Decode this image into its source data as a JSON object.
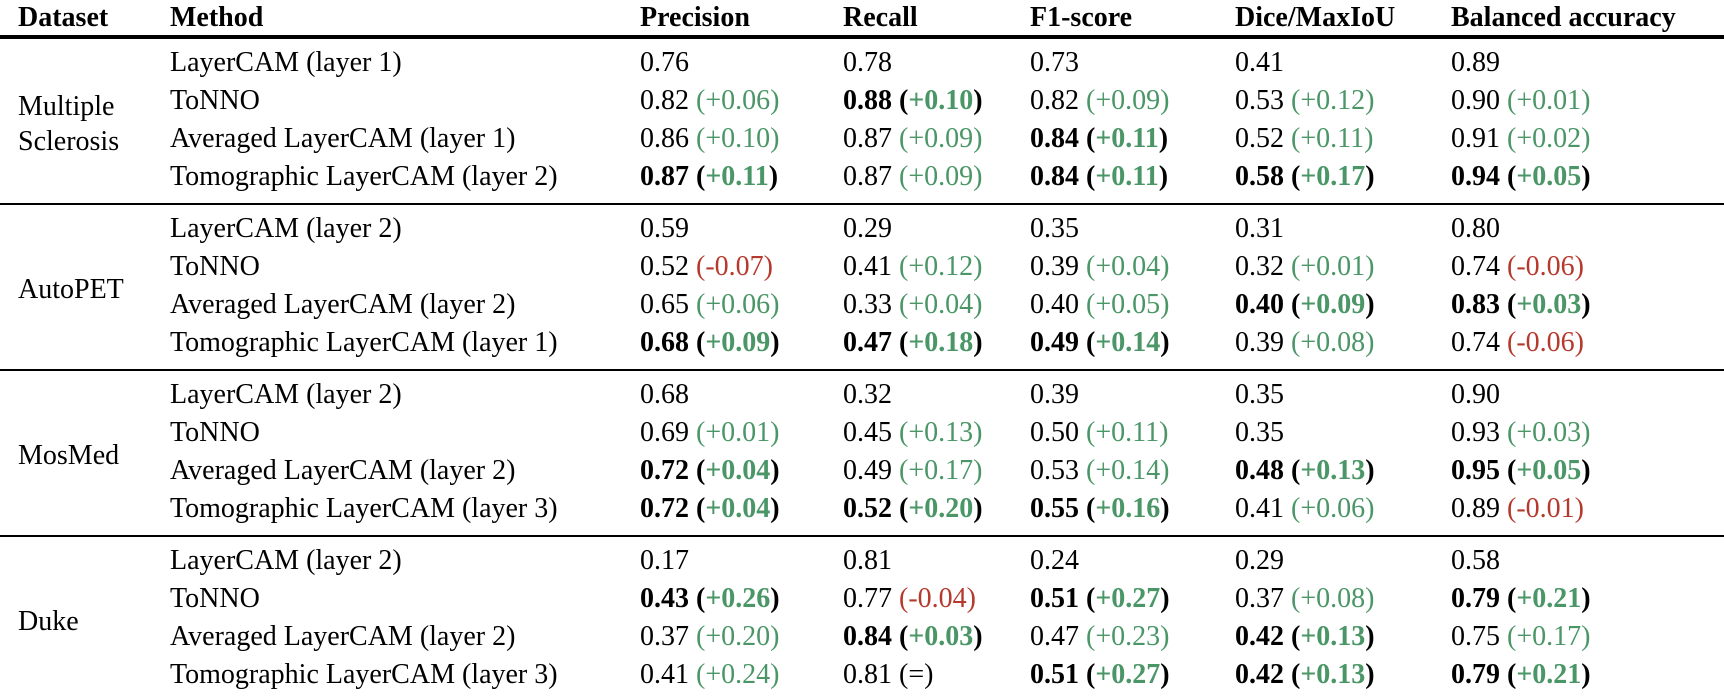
{
  "colors": {
    "positive_delta": "#4a9666",
    "negative_delta": "#b5392d",
    "text": "#000000",
    "background": "#ffffff"
  },
  "table": {
    "headers": [
      "Dataset",
      "Method",
      "Precision",
      "Recall",
      "F1-score",
      "Dice/MaxIoU",
      "Balanced accuracy"
    ],
    "groups": [
      {
        "dataset": "Multiple Sclerosis",
        "rows": [
          {
            "method": "LayerCAM (layer 1)",
            "cells": [
              {
                "value": "0.76",
                "bold": false,
                "delta": null,
                "trend": null
              },
              {
                "value": "0.78",
                "bold": false,
                "delta": null,
                "trend": null
              },
              {
                "value": "0.73",
                "bold": false,
                "delta": null,
                "trend": null
              },
              {
                "value": "0.41",
                "bold": false,
                "delta": null,
                "trend": null
              },
              {
                "value": "0.89",
                "bold": false,
                "delta": null,
                "trend": null
              }
            ]
          },
          {
            "method": "ToNNO",
            "cells": [
              {
                "value": "0.82",
                "bold": false,
                "delta": "+0.06",
                "trend": "pos"
              },
              {
                "value": "0.88",
                "bold": true,
                "delta": "+0.10",
                "trend": "pos"
              },
              {
                "value": "0.82",
                "bold": false,
                "delta": "+0.09",
                "trend": "pos"
              },
              {
                "value": "0.53",
                "bold": false,
                "delta": "+0.12",
                "trend": "pos"
              },
              {
                "value": "0.90",
                "bold": false,
                "delta": "+0.01",
                "trend": "pos"
              }
            ]
          },
          {
            "method": "Averaged LayerCAM (layer 1)",
            "cells": [
              {
                "value": "0.86",
                "bold": false,
                "delta": "+0.10",
                "trend": "pos"
              },
              {
                "value": "0.87",
                "bold": false,
                "delta": "+0.09",
                "trend": "pos"
              },
              {
                "value": "0.84",
                "bold": true,
                "delta": "+0.11",
                "trend": "pos"
              },
              {
                "value": "0.52",
                "bold": false,
                "delta": "+0.11",
                "trend": "pos"
              },
              {
                "value": "0.91",
                "bold": false,
                "delta": "+0.02",
                "trend": "pos"
              }
            ]
          },
          {
            "method": "Tomographic LayerCAM (layer 2)",
            "cells": [
              {
                "value": "0.87",
                "bold": true,
                "delta": "+0.11",
                "trend": "pos"
              },
              {
                "value": "0.87",
                "bold": false,
                "delta": "+0.09",
                "trend": "pos"
              },
              {
                "value": "0.84",
                "bold": true,
                "delta": "+0.11",
                "trend": "pos"
              },
              {
                "value": "0.58",
                "bold": true,
                "delta": "+0.17",
                "trend": "pos"
              },
              {
                "value": "0.94",
                "bold": true,
                "delta": "+0.05",
                "trend": "pos"
              }
            ]
          }
        ]
      },
      {
        "dataset": "AutoPET",
        "rows": [
          {
            "method": "LayerCAM (layer 2)",
            "cells": [
              {
                "value": "0.59",
                "bold": false,
                "delta": null,
                "trend": null
              },
              {
                "value": "0.29",
                "bold": false,
                "delta": null,
                "trend": null
              },
              {
                "value": "0.35",
                "bold": false,
                "delta": null,
                "trend": null
              },
              {
                "value": "0.31",
                "bold": false,
                "delta": null,
                "trend": null
              },
              {
                "value": "0.80",
                "bold": false,
                "delta": null,
                "trend": null
              }
            ]
          },
          {
            "method": "ToNNO",
            "cells": [
              {
                "value": "0.52",
                "bold": false,
                "delta": "-0.07",
                "trend": "neg"
              },
              {
                "value": "0.41",
                "bold": false,
                "delta": "+0.12",
                "trend": "pos"
              },
              {
                "value": "0.39",
                "bold": false,
                "delta": "+0.04",
                "trend": "pos"
              },
              {
                "value": "0.32",
                "bold": false,
                "delta": "+0.01",
                "trend": "pos"
              },
              {
                "value": "0.74",
                "bold": false,
                "delta": "-0.06",
                "trend": "neg"
              }
            ]
          },
          {
            "method": "Averaged LayerCAM (layer 2)",
            "cells": [
              {
                "value": "0.65",
                "bold": false,
                "delta": "+0.06",
                "trend": "pos"
              },
              {
                "value": "0.33",
                "bold": false,
                "delta": "+0.04",
                "trend": "pos"
              },
              {
                "value": "0.40",
                "bold": false,
                "delta": "+0.05",
                "trend": "pos"
              },
              {
                "value": "0.40",
                "bold": true,
                "delta": "+0.09",
                "trend": "pos"
              },
              {
                "value": "0.83",
                "bold": true,
                "delta": "+0.03",
                "trend": "pos"
              }
            ]
          },
          {
            "method": "Tomographic LayerCAM (layer 1)",
            "cells": [
              {
                "value": "0.68",
                "bold": true,
                "delta": "+0.09",
                "trend": "pos"
              },
              {
                "value": "0.47",
                "bold": true,
                "delta": "+0.18",
                "trend": "pos"
              },
              {
                "value": "0.49",
                "bold": true,
                "delta": "+0.14",
                "trend": "pos"
              },
              {
                "value": "0.39",
                "bold": false,
                "delta": "+0.08",
                "trend": "pos"
              },
              {
                "value": "0.74",
                "bold": false,
                "delta": "-0.06",
                "trend": "neg"
              }
            ]
          }
        ]
      },
      {
        "dataset": "MosMed",
        "rows": [
          {
            "method": "LayerCAM (layer 2)",
            "cells": [
              {
                "value": "0.68",
                "bold": false,
                "delta": null,
                "trend": null
              },
              {
                "value": "0.32",
                "bold": false,
                "delta": null,
                "trend": null
              },
              {
                "value": "0.39",
                "bold": false,
                "delta": null,
                "trend": null
              },
              {
                "value": "0.35",
                "bold": false,
                "delta": null,
                "trend": null
              },
              {
                "value": "0.90",
                "bold": false,
                "delta": null,
                "trend": null
              }
            ]
          },
          {
            "method": "ToNNO",
            "cells": [
              {
                "value": "0.69",
                "bold": false,
                "delta": "+0.01",
                "trend": "pos"
              },
              {
                "value": "0.45",
                "bold": false,
                "delta": "+0.13",
                "trend": "pos"
              },
              {
                "value": "0.50",
                "bold": false,
                "delta": "+0.11",
                "trend": "pos"
              },
              {
                "value": "0.35",
                "bold": false,
                "delta": null,
                "trend": null
              },
              {
                "value": "0.93",
                "bold": false,
                "delta": "+0.03",
                "trend": "pos"
              }
            ]
          },
          {
            "method": "Averaged LayerCAM (layer 2)",
            "cells": [
              {
                "value": "0.72",
                "bold": true,
                "delta": "+0.04",
                "trend": "pos"
              },
              {
                "value": "0.49",
                "bold": false,
                "delta": "+0.17",
                "trend": "pos"
              },
              {
                "value": "0.53",
                "bold": false,
                "delta": "+0.14",
                "trend": "pos"
              },
              {
                "value": "0.48",
                "bold": true,
                "delta": "+0.13",
                "trend": "pos"
              },
              {
                "value": "0.95",
                "bold": true,
                "delta": "+0.05",
                "trend": "pos"
              }
            ]
          },
          {
            "method": "Tomographic LayerCAM (layer 3)",
            "cells": [
              {
                "value": "0.72",
                "bold": true,
                "delta": "+0.04",
                "trend": "pos"
              },
              {
                "value": "0.52",
                "bold": true,
                "delta": "+0.20",
                "trend": "pos"
              },
              {
                "value": "0.55",
                "bold": true,
                "delta": "+0.16",
                "trend": "pos"
              },
              {
                "value": "0.41",
                "bold": false,
                "delta": "+0.06",
                "trend": "pos"
              },
              {
                "value": "0.89",
                "bold": false,
                "delta": "-0.01",
                "trend": "neg"
              }
            ]
          }
        ]
      },
      {
        "dataset": "Duke",
        "rows": [
          {
            "method": "LayerCAM (layer 2)",
            "cells": [
              {
                "value": "0.17",
                "bold": false,
                "delta": null,
                "trend": null
              },
              {
                "value": "0.81",
                "bold": false,
                "delta": null,
                "trend": null
              },
              {
                "value": "0.24",
                "bold": false,
                "delta": null,
                "trend": null
              },
              {
                "value": "0.29",
                "bold": false,
                "delta": null,
                "trend": null
              },
              {
                "value": "0.58",
                "bold": false,
                "delta": null,
                "trend": null
              }
            ]
          },
          {
            "method": "ToNNO",
            "cells": [
              {
                "value": "0.43",
                "bold": true,
                "delta": "+0.26",
                "trend": "pos"
              },
              {
                "value": "0.77",
                "bold": false,
                "delta": "-0.04",
                "trend": "neg"
              },
              {
                "value": "0.51",
                "bold": true,
                "delta": "+0.27",
                "trend": "pos"
              },
              {
                "value": "0.37",
                "bold": false,
                "delta": "+0.08",
                "trend": "pos"
              },
              {
                "value": "0.79",
                "bold": true,
                "delta": "+0.21",
                "trend": "pos"
              }
            ]
          },
          {
            "method": "Averaged LayerCAM (layer 2)",
            "cells": [
              {
                "value": "0.37",
                "bold": false,
                "delta": "+0.20",
                "trend": "pos"
              },
              {
                "value": "0.84",
                "bold": true,
                "delta": "+0.03",
                "trend": "pos"
              },
              {
                "value": "0.47",
                "bold": false,
                "delta": "+0.23",
                "trend": "pos"
              },
              {
                "value": "0.42",
                "bold": true,
                "delta": "+0.13",
                "trend": "pos"
              },
              {
                "value": "0.75",
                "bold": false,
                "delta": "+0.17",
                "trend": "pos"
              }
            ]
          },
          {
            "method": "Tomographic LayerCAM (layer 3)",
            "cells": [
              {
                "value": "0.41",
                "bold": false,
                "delta": "+0.24",
                "trend": "pos"
              },
              {
                "value": "0.81",
                "bold": false,
                "delta": "=",
                "trend": "eq"
              },
              {
                "value": "0.51",
                "bold": true,
                "delta": "+0.27",
                "trend": "pos"
              },
              {
                "value": "0.42",
                "bold": true,
                "delta": "+0.13",
                "trend": "pos"
              },
              {
                "value": "0.79",
                "bold": true,
                "delta": "+0.21",
                "trend": "pos"
              }
            ]
          }
        ]
      }
    ]
  }
}
